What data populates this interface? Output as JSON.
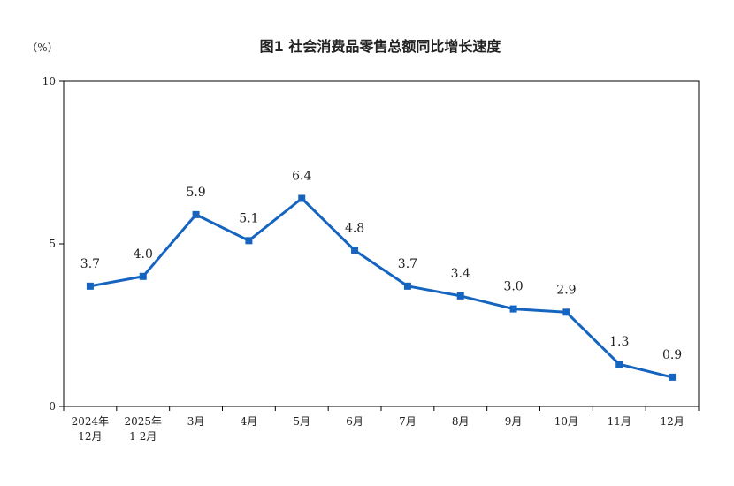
{
  "chart_data": {
    "type": "line",
    "title": "图1  社会消费品零售总额同比增长速度",
    "ylabel": "（%）",
    "xlabel": "",
    "categories": [
      [
        "2024年",
        "12月"
      ],
      [
        "2025年",
        "1-2月"
      ],
      [
        "3月"
      ],
      [
        "4月"
      ],
      [
        "5月"
      ],
      [
        "6月"
      ],
      [
        "7月"
      ],
      [
        "8月"
      ],
      [
        "9月"
      ],
      [
        "10月"
      ],
      [
        "11月"
      ],
      [
        "12月"
      ]
    ],
    "values": [
      3.7,
      4.0,
      5.9,
      5.1,
      6.4,
      4.8,
      3.7,
      3.4,
      3.0,
      2.9,
      1.3,
      0.9
    ],
    "data_labels": [
      "3.7",
      "4.0",
      "5.9",
      "5.1",
      "6.4",
      "4.8",
      "3.7",
      "3.4",
      "3.0",
      "2.9",
      "1.3",
      "0.9"
    ],
    "ylim": [
      0,
      10
    ],
    "yticks": [
      0,
      5,
      10
    ],
    "ytick_labels": [
      "0",
      "5",
      "10"
    ],
    "grid": false,
    "line_color": "#1565c0",
    "marker": "square"
  }
}
